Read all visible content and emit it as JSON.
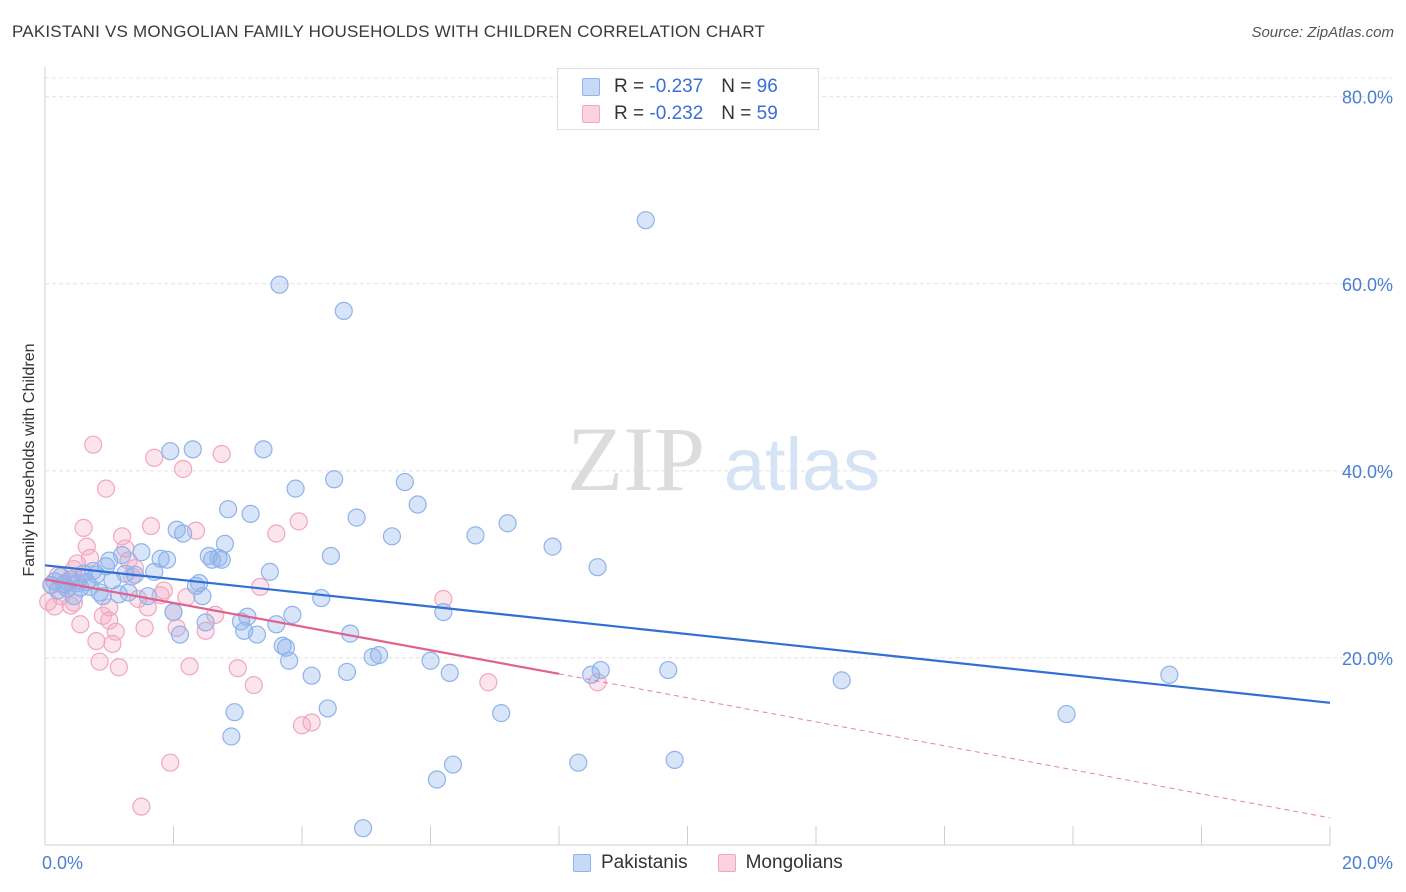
{
  "title": "PAKISTANI VS MONGOLIAN FAMILY HOUSEHOLDS WITH CHILDREN CORRELATION CHART",
  "source": "Source: ZipAtlas.com",
  "watermark": {
    "zip": "ZIP",
    "atlas": "atlas"
  },
  "legend": {
    "r_label": "R =",
    "n_label": "N =",
    "rows": [
      {
        "r": "-0.237",
        "n": "96",
        "color": "#8fb3ea"
      },
      {
        "r": "-0.232",
        "n": "59",
        "color": "#f2a6bf"
      }
    ]
  },
  "bottom_legend": [
    "Pakistanis",
    "Mongolians"
  ],
  "chart_data": {
    "type": "scatter",
    "title": "PAKISTANI VS MONGOLIAN FAMILY HOUSEHOLDS WITH CHILDREN CORRELATION CHART",
    "xlabel": "",
    "ylabel": "Family Households with Children",
    "xlim": [
      0,
      20
    ],
    "ylim": [
      0,
      82
    ],
    "x_tick_labels": [
      "0.0%",
      "20.0%"
    ],
    "y_ticks": [
      20,
      40,
      60,
      80
    ],
    "y_tick_labels": [
      "20.0%",
      "40.0%",
      "60.0%",
      "80.0%"
    ],
    "grid": true,
    "series": [
      {
        "name": "Pakistanis",
        "color": "#8fb3ea",
        "line_color": "#2f6fd6",
        "trend": {
          "x": [
            0,
            20
          ],
          "y": [
            29.9,
            15.2
          ]
        },
        "points": [
          [
            0.1,
            27.8
          ],
          [
            0.15,
            28.2
          ],
          [
            0.2,
            27.2
          ],
          [
            0.25,
            28.7
          ],
          [
            0.3,
            27.9
          ],
          [
            0.35,
            27.4
          ],
          [
            0.4,
            28.4
          ],
          [
            0.45,
            26.6
          ],
          [
            0.5,
            28.0
          ],
          [
            0.55,
            27.5
          ],
          [
            0.6,
            29.0
          ],
          [
            0.65,
            28.1
          ],
          [
            0.7,
            27.6
          ],
          [
            0.75,
            29.3
          ],
          [
            0.8,
            28.9
          ],
          [
            0.85,
            27.0
          ],
          [
            0.9,
            26.6
          ],
          [
            0.95,
            29.8
          ],
          [
            1.0,
            30.4
          ],
          [
            1.05,
            28.3
          ],
          [
            1.15,
            26.8
          ],
          [
            1.2,
            31.0
          ],
          [
            1.25,
            29.0
          ],
          [
            1.3,
            27.0
          ],
          [
            1.4,
            28.9
          ],
          [
            1.5,
            31.3
          ],
          [
            1.6,
            26.6
          ],
          [
            1.7,
            29.2
          ],
          [
            1.8,
            30.6
          ],
          [
            1.9,
            30.5
          ],
          [
            1.95,
            42.1
          ],
          [
            2.0,
            24.9
          ],
          [
            2.05,
            33.7
          ],
          [
            2.1,
            22.5
          ],
          [
            2.15,
            33.3
          ],
          [
            2.3,
            42.3
          ],
          [
            2.35,
            27.7
          ],
          [
            2.4,
            28.0
          ],
          [
            2.45,
            26.6
          ],
          [
            2.5,
            23.8
          ],
          [
            2.55,
            30.9
          ],
          [
            2.6,
            30.5
          ],
          [
            2.7,
            30.7
          ],
          [
            2.75,
            30.5
          ],
          [
            2.8,
            32.2
          ],
          [
            2.85,
            35.9
          ],
          [
            2.9,
            11.6
          ],
          [
            2.95,
            14.2
          ],
          [
            3.05,
            23.9
          ],
          [
            3.1,
            22.9
          ],
          [
            3.15,
            24.4
          ],
          [
            3.2,
            35.4
          ],
          [
            3.3,
            22.5
          ],
          [
            3.4,
            42.3
          ],
          [
            3.5,
            29.2
          ],
          [
            3.6,
            23.6
          ],
          [
            3.65,
            59.9
          ],
          [
            3.7,
            21.3
          ],
          [
            3.75,
            21.1
          ],
          [
            3.8,
            19.7
          ],
          [
            3.85,
            24.6
          ],
          [
            3.9,
            38.1
          ],
          [
            4.15,
            18.1
          ],
          [
            4.3,
            26.4
          ],
          [
            4.4,
            14.6
          ],
          [
            4.45,
            30.9
          ],
          [
            4.5,
            39.1
          ],
          [
            4.65,
            57.1
          ],
          [
            4.7,
            18.5
          ],
          [
            4.75,
            22.6
          ],
          [
            4.85,
            35.0
          ],
          [
            4.95,
            1.8
          ],
          [
            5.1,
            20.1
          ],
          [
            5.2,
            20.3
          ],
          [
            5.4,
            33.0
          ],
          [
            5.6,
            38.8
          ],
          [
            5.8,
            36.4
          ],
          [
            6.0,
            19.7
          ],
          [
            6.1,
            7.0
          ],
          [
            6.2,
            24.9
          ],
          [
            6.3,
            18.4
          ],
          [
            6.35,
            8.6
          ],
          [
            6.7,
            33.1
          ],
          [
            7.1,
            14.1
          ],
          [
            7.2,
            34.4
          ],
          [
            7.9,
            31.9
          ],
          [
            8.3,
            8.8
          ],
          [
            8.5,
            18.2
          ],
          [
            8.6,
            29.7
          ],
          [
            8.65,
            18.7
          ],
          [
            9.35,
            66.8
          ],
          [
            9.7,
            18.7
          ],
          [
            9.8,
            9.1
          ],
          [
            12.4,
            17.6
          ],
          [
            15.9,
            14.0
          ],
          [
            17.5,
            18.2
          ]
        ]
      },
      {
        "name": "Mongolians",
        "color": "#f2a6bf",
        "line_color": "#e0628e",
        "trend": {
          "x": [
            0,
            8.0
          ],
          "y": [
            28.4,
            18.3
          ]
        },
        "trend_dashed": {
          "x": [
            8.0,
            20
          ],
          "y": [
            18.3,
            2.9
          ]
        },
        "points": [
          [
            0.05,
            26.0
          ],
          [
            0.1,
            27.8
          ],
          [
            0.15,
            25.5
          ],
          [
            0.2,
            28.8
          ],
          [
            0.25,
            26.6
          ],
          [
            0.3,
            27.7
          ],
          [
            0.35,
            28.2
          ],
          [
            0.4,
            25.6
          ],
          [
            0.45,
            29.5
          ],
          [
            0.5,
            28.3
          ],
          [
            0.55,
            23.6
          ],
          [
            0.5,
            30.1
          ],
          [
            0.45,
            25.9
          ],
          [
            0.6,
            33.9
          ],
          [
            0.65,
            31.9
          ],
          [
            0.7,
            30.7
          ],
          [
            0.75,
            42.8
          ],
          [
            0.8,
            21.8
          ],
          [
            0.85,
            19.6
          ],
          [
            0.9,
            24.5
          ],
          [
            0.95,
            38.1
          ],
          [
            1.0,
            25.4
          ],
          [
            1.0,
            24.0
          ],
          [
            1.05,
            21.5
          ],
          [
            1.1,
            22.8
          ],
          [
            1.15,
            19.0
          ],
          [
            1.2,
            33.0
          ],
          [
            1.25,
            31.7
          ],
          [
            1.3,
            30.4
          ],
          [
            1.35,
            28.7
          ],
          [
            1.4,
            29.6
          ],
          [
            1.45,
            26.3
          ],
          [
            1.5,
            4.1
          ],
          [
            1.55,
            23.2
          ],
          [
            1.6,
            25.4
          ],
          [
            1.65,
            34.1
          ],
          [
            1.7,
            41.4
          ],
          [
            1.8,
            26.7
          ],
          [
            1.85,
            27.2
          ],
          [
            1.95,
            8.8
          ],
          [
            2.0,
            24.9
          ],
          [
            2.05,
            23.2
          ],
          [
            2.15,
            40.2
          ],
          [
            2.2,
            26.5
          ],
          [
            2.25,
            19.1
          ],
          [
            2.35,
            33.6
          ],
          [
            2.5,
            22.9
          ],
          [
            2.65,
            24.6
          ],
          [
            2.75,
            41.8
          ],
          [
            3.0,
            18.9
          ],
          [
            3.25,
            17.1
          ],
          [
            3.35,
            27.6
          ],
          [
            3.6,
            33.3
          ],
          [
            3.95,
            34.6
          ],
          [
            4.0,
            12.8
          ],
          [
            4.15,
            13.1
          ],
          [
            6.2,
            26.3
          ],
          [
            6.9,
            17.4
          ],
          [
            8.6,
            17.4
          ]
        ]
      }
    ]
  }
}
